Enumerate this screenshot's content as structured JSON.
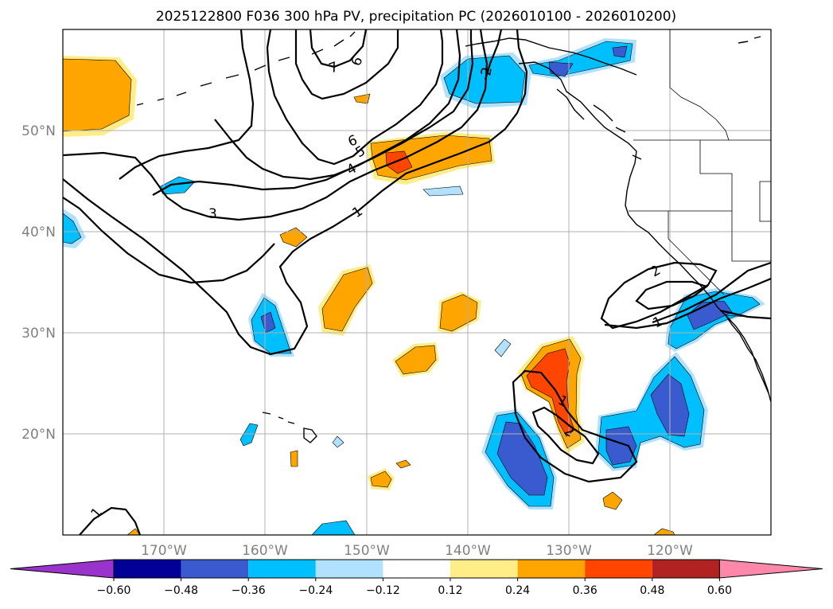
{
  "title": "2025122800 F036 300 hPa PV, precipitation PC (2026010100 - 2026010200)",
  "axes": {
    "lat_labels": [
      "50°N",
      "40°N",
      "30°N",
      "20°N"
    ],
    "lon_labels": [
      "170°W",
      "160°W",
      "150°W",
      "140°W",
      "130°W",
      "120°W"
    ]
  },
  "colorbar": {
    "ticks": [
      "−0.60",
      "−0.48",
      "−0.36",
      "−0.24",
      "−0.12",
      "0.12",
      "0.24",
      "0.36",
      "0.48",
      "0.60"
    ],
    "colors": {
      "under": "#9933cc",
      "bins": [
        "#000099",
        "#3a5bd0",
        "#00bfff",
        "#b0e2ff",
        "#ffffff",
        "#ffee88",
        "#ffa500",
        "#ff4500",
        "#b22222"
      ],
      "over": "#ff88aa"
    }
  },
  "contour_labels": [
    "1",
    "2",
    "3",
    "4",
    "5",
    "6",
    "7",
    "6",
    "2",
    "1",
    "1",
    "2",
    "1",
    "2",
    "1"
  ],
  "chart_data": {
    "type": "map",
    "lat_range": [
      10,
      60
    ],
    "lon_range": [
      -180,
      -110
    ],
    "contour_field": "300 hPa PV",
    "fill_field": "precipitation PC",
    "contour_levels": [
      1,
      2,
      3,
      4,
      5,
      6,
      7
    ]
  }
}
